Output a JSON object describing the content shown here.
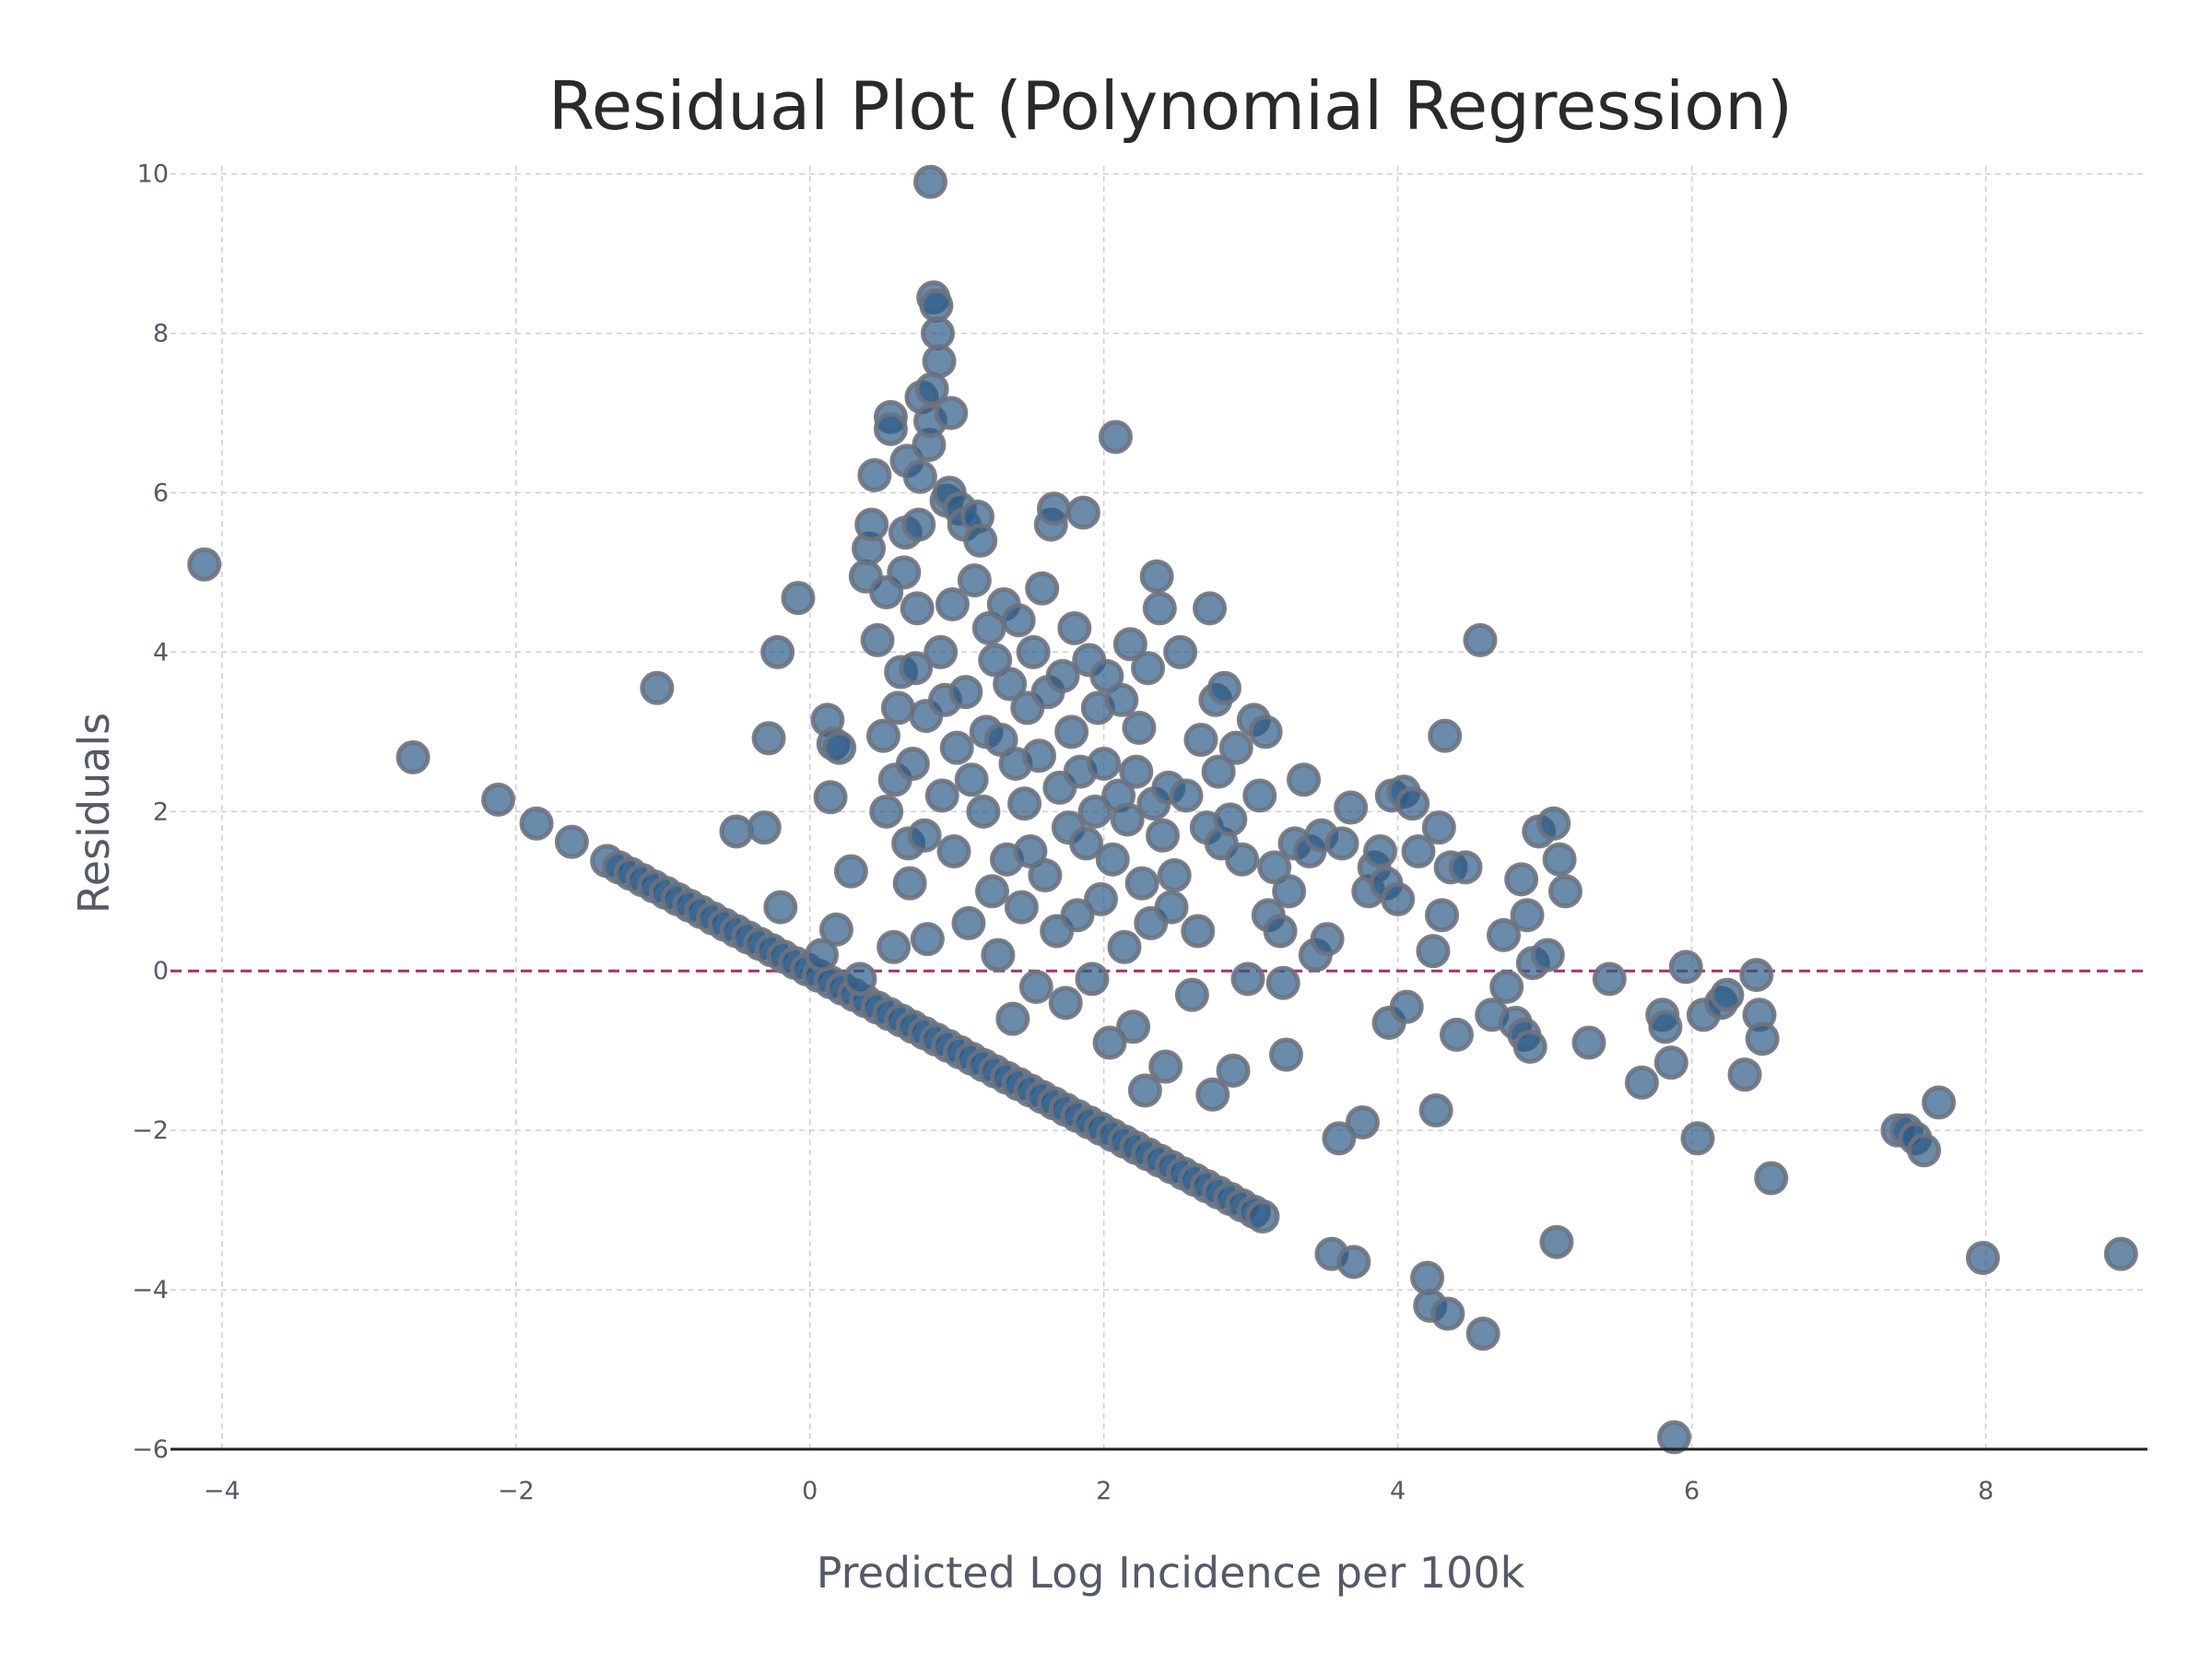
{
  "chart_data": {
    "type": "scatter",
    "title": "Residual Plot (Polynomial Regression)",
    "xlabel": "Predicted Log Incidence per 100k",
    "ylabel": "Residuals",
    "xlim": [
      -4.35,
      9.1
    ],
    "ylim": [
      -6,
      10.1
    ],
    "x_ticks": [
      -4,
      -2,
      0,
      2,
      4,
      6,
      8
    ],
    "y_ticks": [
      -6,
      -4,
      -2,
      0,
      2,
      4,
      6,
      8,
      10
    ],
    "x_tick_labels": [
      "−4",
      "−2",
      "0",
      "2",
      "4",
      "6",
      "8"
    ],
    "y_tick_labels": [
      "−6",
      "−4",
      "−2",
      "0",
      "2",
      "4",
      "6",
      "8",
      "10"
    ],
    "grid": true,
    "reference_line": {
      "y": 0,
      "style": "dashed",
      "color": "#a0336a"
    },
    "colors": {
      "marker_fill": "#2b5a86",
      "marker_stroke": "#6b7280",
      "marker_opacity": 0.7
    },
    "series": [
      {
        "points": [
          [
            -4.12,
            5.1
          ],
          [
            -2.7,
            2.68
          ],
          [
            -2.12,
            2.15
          ],
          [
            -1.86,
            1.85
          ],
          [
            -1.62,
            1.62
          ],
          [
            -1.38,
            1.38
          ],
          [
            -1.3,
            1.3
          ],
          [
            -1.22,
            1.22
          ],
          [
            -1.14,
            1.14
          ],
          [
            -1.06,
            1.06
          ],
          [
            -0.98,
            0.98
          ],
          [
            -0.9,
            0.9
          ],
          [
            -0.82,
            0.82
          ],
          [
            -0.74,
            0.74
          ],
          [
            -0.66,
            0.66
          ],
          [
            -0.58,
            0.58
          ],
          [
            -0.5,
            0.5
          ],
          [
            -0.42,
            0.42
          ],
          [
            -0.34,
            0.34
          ],
          [
            -0.26,
            0.26
          ],
          [
            -0.18,
            0.18
          ],
          [
            -0.1,
            0.1
          ],
          [
            -0.02,
            0.02
          ],
          [
            0.06,
            -0.06
          ],
          [
            0.14,
            -0.14
          ],
          [
            0.22,
            -0.22
          ],
          [
            0.3,
            -0.3
          ],
          [
            0.38,
            -0.38
          ],
          [
            0.46,
            -0.46
          ],
          [
            0.54,
            -0.54
          ],
          [
            0.62,
            -0.62
          ],
          [
            0.7,
            -0.7
          ],
          [
            0.78,
            -0.78
          ],
          [
            0.86,
            -0.86
          ],
          [
            0.94,
            -0.94
          ],
          [
            1.02,
            -1.02
          ],
          [
            1.1,
            -1.1
          ],
          [
            1.18,
            -1.18
          ],
          [
            1.26,
            -1.26
          ],
          [
            1.34,
            -1.34
          ],
          [
            1.42,
            -1.42
          ],
          [
            1.5,
            -1.5
          ],
          [
            1.58,
            -1.58
          ],
          [
            1.66,
            -1.66
          ],
          [
            1.74,
            -1.74
          ],
          [
            1.82,
            -1.82
          ],
          [
            1.9,
            -1.9
          ],
          [
            1.98,
            -1.98
          ],
          [
            2.06,
            -2.06
          ],
          [
            2.14,
            -2.14
          ],
          [
            2.22,
            -2.22
          ],
          [
            2.3,
            -2.3
          ],
          [
            2.38,
            -2.38
          ],
          [
            2.46,
            -2.46
          ],
          [
            2.54,
            -2.54
          ],
          [
            2.62,
            -2.62
          ],
          [
            2.7,
            -2.7
          ],
          [
            2.78,
            -2.78
          ],
          [
            2.86,
            -2.86
          ],
          [
            2.94,
            -2.94
          ],
          [
            3.02,
            -3.02
          ],
          [
            3.08,
            -3.08
          ],
          [
            -1.04,
            3.55
          ],
          [
            -0.5,
            1.75
          ],
          [
            -0.31,
            1.8
          ],
          [
            -0.28,
            2.92
          ],
          [
            -0.2,
            0.8
          ],
          [
            -0.22,
            4.0
          ],
          [
            -0.08,
            4.68
          ],
          [
            0.08,
            0.2
          ],
          [
            0.12,
            3.15
          ],
          [
            0.14,
            2.18
          ],
          [
            0.16,
            2.85
          ],
          [
            0.18,
            0.52
          ],
          [
            0.2,
            2.8
          ],
          [
            0.28,
            1.25
          ],
          [
            0.34,
            -0.1
          ],
          [
            0.38,
            4.95
          ],
          [
            0.4,
            5.3
          ],
          [
            0.42,
            5.6
          ],
          [
            0.44,
            6.22
          ],
          [
            0.46,
            4.15
          ],
          [
            0.5,
            2.95
          ],
          [
            0.52,
            2.0
          ],
          [
            0.52,
            4.75
          ],
          [
            0.55,
            6.95
          ],
          [
            0.55,
            6.8
          ],
          [
            0.57,
            0.3
          ],
          [
            0.58,
            2.4
          ],
          [
            0.6,
            3.3
          ],
          [
            0.62,
            3.75
          ],
          [
            0.64,
            5.0
          ],
          [
            0.65,
            5.5
          ],
          [
            0.66,
            6.4
          ],
          [
            0.67,
            1.6
          ],
          [
            0.68,
            1.1
          ],
          [
            0.7,
            2.6
          ],
          [
            0.72,
            3.8
          ],
          [
            0.73,
            4.55
          ],
          [
            0.74,
            5.6
          ],
          [
            0.75,
            6.2
          ],
          [
            0.76,
            7.2
          ],
          [
            0.78,
            1.7
          ],
          [
            0.79,
            3.2
          ],
          [
            0.8,
            0.4
          ],
          [
            0.81,
            6.6
          ],
          [
            0.82,
            6.9
          ],
          [
            0.83,
            7.3
          ],
          [
            0.84,
            8.45
          ],
          [
            0.86,
            8.35
          ],
          [
            0.87,
            8.0
          ],
          [
            0.88,
            7.65
          ],
          [
            0.89,
            4.0
          ],
          [
            0.9,
            2.2
          ],
          [
            0.92,
            3.4
          ],
          [
            0.93,
            5.9
          ],
          [
            0.95,
            6.0
          ],
          [
            0.96,
            7.0
          ],
          [
            0.97,
            4.6
          ],
          [
            0.98,
            1.5
          ],
          [
            1.0,
            2.8
          ],
          [
            1.02,
            5.8
          ],
          [
            1.05,
            5.6
          ],
          [
            1.06,
            3.5
          ],
          [
            1.08,
            0.6
          ],
          [
            1.1,
            2.4
          ],
          [
            1.12,
            4.9
          ],
          [
            1.14,
            5.7
          ],
          [
            1.16,
            5.4
          ],
          [
            1.18,
            2.0
          ],
          [
            1.2,
            3.0
          ],
          [
            1.22,
            4.3
          ],
          [
            1.24,
            1.0
          ],
          [
            1.26,
            3.9
          ],
          [
            1.28,
            0.2
          ],
          [
            1.3,
            2.9
          ],
          [
            1.32,
            4.6
          ],
          [
            1.34,
            1.4
          ],
          [
            1.36,
            3.6
          ],
          [
            1.38,
            -0.6
          ],
          [
            1.4,
            2.6
          ],
          [
            1.42,
            4.4
          ],
          [
            1.44,
            0.8
          ],
          [
            1.46,
            2.1
          ],
          [
            1.48,
            3.3
          ],
          [
            1.5,
            1.5
          ],
          [
            1.52,
            4.0
          ],
          [
            1.54,
            -0.2
          ],
          [
            1.56,
            2.7
          ],
          [
            1.58,
            4.8
          ],
          [
            1.6,
            1.2
          ],
          [
            1.62,
            3.5
          ],
          [
            1.64,
            5.6
          ],
          [
            1.66,
            5.8
          ],
          [
            1.68,
            0.5
          ],
          [
            1.7,
            2.3
          ],
          [
            1.72,
            3.7
          ],
          [
            1.74,
            -0.4
          ],
          [
            1.76,
            1.8
          ],
          [
            1.78,
            3.0
          ],
          [
            1.8,
            4.3
          ],
          [
            1.82,
            0.7
          ],
          [
            1.84,
            2.5
          ],
          [
            1.86,
            5.75
          ],
          [
            1.88,
            1.6
          ],
          [
            1.9,
            3.9
          ],
          [
            1.92,
            -0.1
          ],
          [
            1.94,
            2.0
          ],
          [
            1.96,
            3.3
          ],
          [
            1.98,
            0.9
          ],
          [
            2.0,
            2.6
          ],
          [
            2.02,
            3.7
          ],
          [
            2.04,
            -0.9
          ],
          [
            2.06,
            1.4
          ],
          [
            2.08,
            6.7
          ],
          [
            2.1,
            2.2
          ],
          [
            2.12,
            3.4
          ],
          [
            2.14,
            0.3
          ],
          [
            2.16,
            1.9
          ],
          [
            2.18,
            4.1
          ],
          [
            2.2,
            -0.7
          ],
          [
            2.22,
            2.5
          ],
          [
            2.24,
            3.05
          ],
          [
            2.26,
            1.1
          ],
          [
            2.28,
            -1.5
          ],
          [
            2.3,
            3.8
          ],
          [
            2.32,
            0.6
          ],
          [
            2.34,
            2.1
          ],
          [
            2.36,
            4.95
          ],
          [
            2.38,
            4.55
          ],
          [
            2.4,
            1.7
          ],
          [
            2.42,
            -1.2
          ],
          [
            2.44,
            2.3
          ],
          [
            2.46,
            0.8
          ],
          [
            2.48,
            1.2
          ],
          [
            2.52,
            4.0
          ],
          [
            2.56,
            2.2
          ],
          [
            2.6,
            -0.3
          ],
          [
            2.64,
            0.5
          ],
          [
            2.66,
            2.9
          ],
          [
            2.7,
            1.8
          ],
          [
            2.72,
            4.55
          ],
          [
            2.74,
            -1.55
          ],
          [
            2.76,
            3.4
          ],
          [
            2.78,
            2.5
          ],
          [
            2.8,
            1.6
          ],
          [
            2.82,
            3.55
          ],
          [
            2.86,
            1.9
          ],
          [
            2.88,
            -1.25
          ],
          [
            2.9,
            2.8
          ],
          [
            2.94,
            1.4
          ],
          [
            2.98,
            -0.1
          ],
          [
            3.02,
            3.15
          ],
          [
            3.06,
            2.2
          ],
          [
            3.1,
            3.0
          ],
          [
            3.12,
            0.7
          ],
          [
            3.16,
            1.3
          ],
          [
            3.2,
            0.5
          ],
          [
            3.22,
            -0.15
          ],
          [
            3.24,
            -1.05
          ],
          [
            3.26,
            1.0
          ],
          [
            3.3,
            1.6
          ],
          [
            3.36,
            2.4
          ],
          [
            3.4,
            1.5
          ],
          [
            3.44,
            0.2
          ],
          [
            3.48,
            1.7
          ],
          [
            3.52,
            0.4
          ],
          [
            3.55,
            -3.55
          ],
          [
            3.6,
            -2.1
          ],
          [
            3.62,
            1.6
          ],
          [
            3.68,
            2.05
          ],
          [
            3.7,
            -3.65
          ],
          [
            3.76,
            -1.9
          ],
          [
            3.8,
            1.0
          ],
          [
            3.84,
            1.3
          ],
          [
            3.88,
            1.5
          ],
          [
            3.92,
            1.1
          ],
          [
            3.94,
            -0.65
          ],
          [
            3.96,
            2.2
          ],
          [
            4.0,
            0.9
          ],
          [
            4.04,
            2.25
          ],
          [
            4.06,
            -0.45
          ],
          [
            4.1,
            2.1
          ],
          [
            4.14,
            1.5
          ],
          [
            4.2,
            -3.85
          ],
          [
            4.22,
            -4.2
          ],
          [
            4.24,
            0.25
          ],
          [
            4.26,
            -1.75
          ],
          [
            4.28,
            1.8
          ],
          [
            4.3,
            0.7
          ],
          [
            4.32,
            2.95
          ],
          [
            4.34,
            -4.3
          ],
          [
            4.36,
            1.3
          ],
          [
            4.4,
            -0.8
          ],
          [
            4.46,
            1.3
          ],
          [
            4.56,
            4.15
          ],
          [
            4.58,
            -4.55
          ],
          [
            4.64,
            -0.55
          ],
          [
            4.72,
            0.45
          ],
          [
            4.74,
            -0.2
          ],
          [
            4.8,
            -0.65
          ],
          [
            4.84,
            1.15
          ],
          [
            4.86,
            -0.8
          ],
          [
            4.88,
            0.7
          ],
          [
            4.9,
            -0.95
          ],
          [
            4.92,
            0.1
          ],
          [
            4.96,
            1.75
          ],
          [
            5.02,
            0.2
          ],
          [
            5.06,
            1.85
          ],
          [
            5.08,
            -3.4
          ],
          [
            5.1,
            1.4
          ],
          [
            5.14,
            1.0
          ],
          [
            5.3,
            -0.9
          ],
          [
            5.44,
            -0.1
          ],
          [
            5.66,
            -1.4
          ],
          [
            5.8,
            -0.55
          ],
          [
            5.82,
            -0.7
          ],
          [
            5.86,
            -1.15
          ],
          [
            5.88,
            -5.85
          ],
          [
            5.96,
            0.05
          ],
          [
            6.04,
            -2.1
          ],
          [
            6.08,
            -0.55
          ],
          [
            6.2,
            -0.4
          ],
          [
            6.24,
            -0.3
          ],
          [
            6.36,
            -1.3
          ],
          [
            6.44,
            -0.05
          ],
          [
            6.46,
            -0.55
          ],
          [
            6.48,
            -0.85
          ],
          [
            6.54,
            -2.6
          ],
          [
            7.4,
            -2.0
          ],
          [
            7.46,
            -2.0
          ],
          [
            7.52,
            -2.1
          ],
          [
            7.58,
            -2.25
          ],
          [
            7.68,
            -1.65
          ],
          [
            7.98,
            -3.6
          ],
          [
            8.92,
            -3.55
          ],
          [
            0.82,
            9.9
          ]
        ]
      }
    ]
  }
}
